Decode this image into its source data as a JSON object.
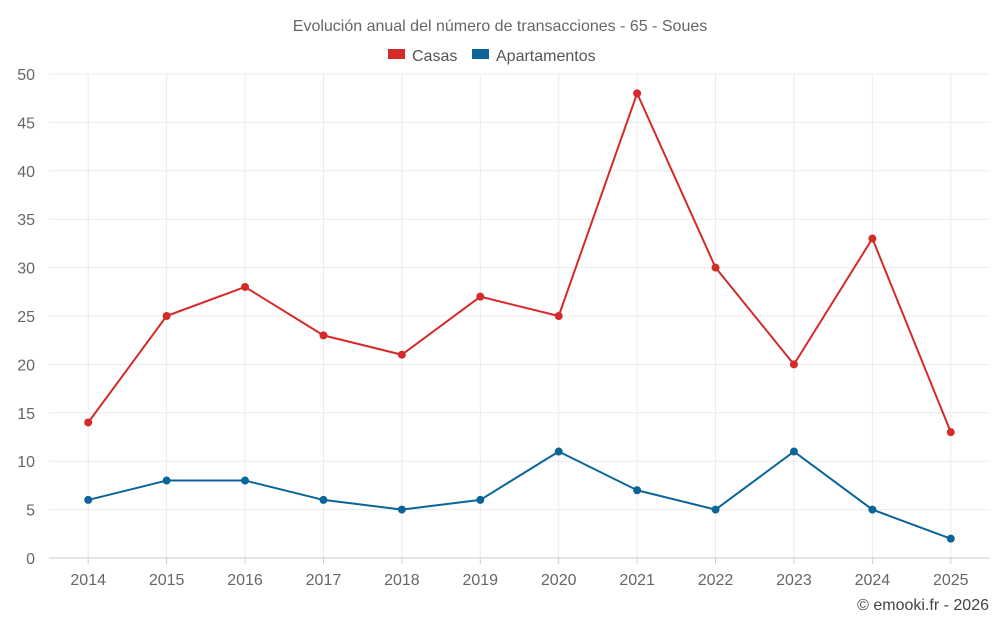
{
  "chart_data": {
    "type": "line",
    "title": "Evolución anual del número de transacciones - 65 - Soues",
    "categories": [
      "2014",
      "2015",
      "2016",
      "2017",
      "2018",
      "2019",
      "2020",
      "2021",
      "2022",
      "2023",
      "2024",
      "2025"
    ],
    "series": [
      {
        "name": "Casas",
        "color": "#d42a2a",
        "values": [
          14,
          25,
          28,
          23,
          21,
          27,
          25,
          48,
          30,
          20,
          33,
          13
        ]
      },
      {
        "name": "Apartamentos",
        "color": "#0b6598",
        "values": [
          6,
          8,
          8,
          6,
          5,
          6,
          11,
          7,
          5,
          11,
          5,
          2
        ]
      }
    ],
    "ylim": [
      0,
      50
    ],
    "yticks": [
      "0",
      "5",
      "10",
      "15",
      "20",
      "25",
      "30",
      "35",
      "40",
      "45",
      "50"
    ],
    "xlabel": "",
    "ylabel": "",
    "grid": true,
    "legend": "top-center"
  },
  "credit": "© emooki.fr - 2026"
}
